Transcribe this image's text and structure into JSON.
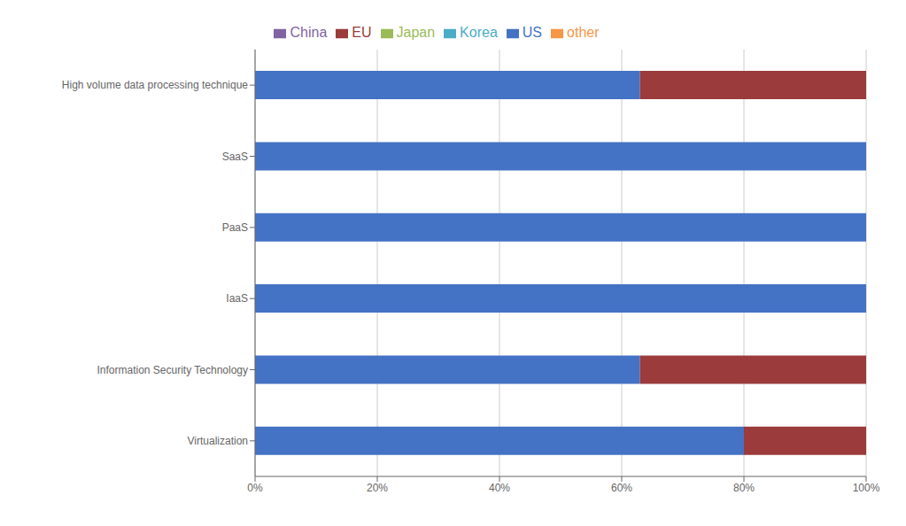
{
  "chart_data": {
    "type": "bar",
    "orientation": "horizontal",
    "stacked": true,
    "categories": [
      "High volume data processing technique",
      "SaaS",
      "PaaS",
      "IaaS",
      "Information Security Technology",
      "Virtualization"
    ],
    "series": [
      {
        "name": "US",
        "color": "#4472C4",
        "values": [
          63,
          100,
          100,
          100,
          63,
          80
        ]
      },
      {
        "name": "EU",
        "color": "#9B3B3B",
        "values": [
          37,
          0,
          0,
          0,
          37,
          20
        ]
      },
      {
        "name": "Japan",
        "color": "#9BBB59",
        "values": [
          0,
          0,
          0,
          0,
          0,
          0
        ]
      },
      {
        "name": "China",
        "color": "#8064A2",
        "values": [
          0,
          0,
          0,
          0,
          0,
          0
        ]
      },
      {
        "name": "Korea",
        "color": "#4BACC6",
        "values": [
          0,
          0,
          0,
          0,
          0,
          0
        ]
      },
      {
        "name": "other",
        "color": "#F79646",
        "values": [
          0,
          0,
          0,
          0,
          0,
          0
        ]
      }
    ],
    "xlim": [
      0,
      100
    ],
    "xticks": [
      {
        "value": 0,
        "label": "0%"
      },
      {
        "value": 20,
        "label": "20%"
      },
      {
        "value": 40,
        "label": "40%"
      },
      {
        "value": 60,
        "label": "60%"
      },
      {
        "value": 80,
        "label": "80%"
      },
      {
        "value": 100,
        "label": "100%"
      }
    ],
    "grid": true,
    "legend": "top"
  }
}
